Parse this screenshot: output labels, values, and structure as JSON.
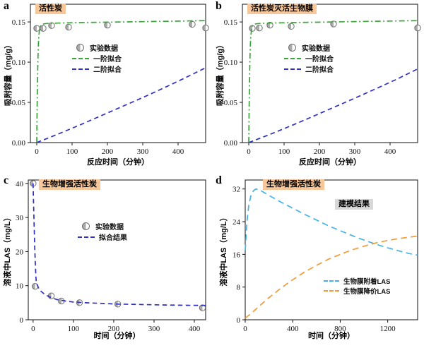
{
  "figure": {
    "background": "#ffffff"
  },
  "chart_data": [
    {
      "type": "line",
      "panel_label": "a",
      "title": "活性炭",
      "title_bg": "#f7c79a",
      "xlabel": "反应时间（分钟）",
      "ylabel": "吸附容量（mg/g）",
      "xlim": [
        -18,
        478
      ],
      "ylim": [
        0,
        0.172
      ],
      "xticks": [
        0,
        100,
        200,
        300,
        400
      ],
      "xtick_labels": [
        "0",
        "100",
        "200",
        "300",
        "400"
      ],
      "yticks": [
        0,
        0.05,
        0.1,
        0.15
      ],
      "ytick_labels": [
        "0.00",
        "0.05",
        "0.10",
        "0.15"
      ],
      "grid": false,
      "legend_position": "center",
      "series": [
        {
          "name": "实验数据",
          "type": "scatter",
          "marker": "half-filled-circle",
          "color": "#ababab",
          "x": [
            0,
            18,
            42,
            90,
            200,
            440,
            478
          ],
          "y": [
            0.142,
            0.142,
            0.1455,
            0.1435,
            0.146,
            0.147,
            0.1425
          ]
        },
        {
          "name": "一阶拟合",
          "type": "line",
          "style": "dashdot",
          "color": "#3aa63a",
          "points": [
            [
              0,
              0
            ],
            [
              1,
              0.04
            ],
            [
              2,
              0.072
            ],
            [
              3,
              0.097
            ],
            [
              4,
              0.114
            ],
            [
              5,
              0.125
            ],
            [
              6,
              0.133
            ],
            [
              8,
              0.141
            ],
            [
              10,
              0.1445
            ],
            [
              14,
              0.1467
            ],
            [
              20,
              0.1476
            ],
            [
              30,
              0.1481
            ],
            [
              60,
              0.1486
            ],
            [
              120,
              0.1492
            ],
            [
              200,
              0.1497
            ],
            [
              300,
              0.1503
            ],
            [
              400,
              0.151
            ],
            [
              478,
              0.1516
            ]
          ]
        },
        {
          "name": "二阶拟合",
          "type": "line",
          "style": "dash",
          "color": "#2f2fc1",
          "points": [
            [
              0,
              0
            ],
            [
              60,
              0.0105
            ],
            [
              120,
              0.0215
            ],
            [
              180,
              0.033
            ],
            [
              240,
              0.0445
            ],
            [
              300,
              0.056
            ],
            [
              360,
              0.068
            ],
            [
              420,
              0.0805
            ],
            [
              478,
              0.093
            ]
          ]
        }
      ]
    },
    {
      "type": "line",
      "panel_label": "b",
      "title": "活性炭灭活生物膜",
      "title_bg": "#f7c79a",
      "xlabel": "反应时间（分钟）",
      "ylabel": "吸附容量（mg/g）",
      "xlim": [
        -18,
        478
      ],
      "ylim": [
        0,
        0.172
      ],
      "xticks": [
        0,
        100,
        200,
        300,
        400
      ],
      "xtick_labels": [
        "0",
        "100",
        "200",
        "300",
        "400"
      ],
      "yticks": [
        0,
        0.05,
        0.1,
        0.15
      ],
      "ytick_labels": [
        "0.00",
        "0.05",
        "0.10",
        "0.15"
      ],
      "grid": false,
      "legend_position": "center",
      "series": [
        {
          "name": "实验数据",
          "type": "scatter",
          "marker": "half-filled-circle",
          "color": "#ababab",
          "x": [
            10,
            30,
            60,
            120,
            240,
            478
          ],
          "y": [
            0.142,
            0.1425,
            0.146,
            0.1445,
            0.1475,
            0.1425
          ]
        },
        {
          "name": "一阶拟合",
          "type": "line",
          "style": "dashdot",
          "color": "#3aa63a",
          "points": [
            [
              0,
              0
            ],
            [
              1,
              0.04
            ],
            [
              2,
              0.072
            ],
            [
              3,
              0.097
            ],
            [
              4,
              0.114
            ],
            [
              5,
              0.125
            ],
            [
              6,
              0.133
            ],
            [
              8,
              0.141
            ],
            [
              10,
              0.1445
            ],
            [
              14,
              0.1467
            ],
            [
              20,
              0.1476
            ],
            [
              30,
              0.1481
            ],
            [
              60,
              0.1486
            ],
            [
              120,
              0.1492
            ],
            [
              200,
              0.1497
            ],
            [
              300,
              0.1504
            ],
            [
              400,
              0.1511
            ],
            [
              478,
              0.1516
            ]
          ]
        },
        {
          "name": "二阶拟合",
          "type": "line",
          "style": "dash",
          "color": "#2f2fc1",
          "points": [
            [
              0,
              0
            ],
            [
              60,
              0.0102
            ],
            [
              120,
              0.021
            ],
            [
              180,
              0.0322
            ],
            [
              240,
              0.0437
            ],
            [
              300,
              0.0552
            ],
            [
              360,
              0.067
            ],
            [
              420,
              0.079
            ],
            [
              478,
              0.0915
            ]
          ]
        }
      ]
    },
    {
      "type": "line",
      "panel_label": "c",
      "title": "生物增强活性炭",
      "title_bg": "#f7c79a",
      "xlabel": "时间（分钟）",
      "ylabel": "溶液中LAS（mg/L）",
      "xlim": [
        -12,
        428
      ],
      "ylim": [
        0,
        41
      ],
      "xticks": [
        0,
        100,
        200,
        300,
        400
      ],
      "xtick_labels": [
        "0",
        "100",
        "200",
        "300",
        "400"
      ],
      "yticks": [
        0,
        10,
        20,
        30,
        40
      ],
      "ytick_labels": [
        "0",
        "10",
        "20",
        "30",
        "40"
      ],
      "grid": false,
      "legend_position": "center",
      "series": [
        {
          "name": "实验数据",
          "type": "scatter",
          "marker": "half-filled-circle",
          "color": "#ababab",
          "x": [
            0,
            5,
            45,
            70,
            115,
            210,
            420
          ],
          "y": [
            40,
            9.8,
            7.0,
            5.5,
            5.0,
            4.6,
            3.5
          ]
        },
        {
          "name": "拟合结果",
          "type": "line",
          "style": "dash",
          "color": "#2f2fc1",
          "points": [
            [
              0,
              40
            ],
            [
              1,
              35
            ],
            [
              2,
              30
            ],
            [
              3,
              25.5
            ],
            [
              4,
              21.5
            ],
            [
              5,
              18
            ],
            [
              6,
              15
            ],
            [
              7,
              12.6
            ],
            [
              8,
              11
            ],
            [
              10,
              10.3
            ],
            [
              14,
              9.2
            ],
            [
              20,
              8.3
            ],
            [
              30,
              7.3
            ],
            [
              45,
              6.5
            ],
            [
              60,
              5.9
            ],
            [
              80,
              5.5
            ],
            [
              100,
              5.2
            ],
            [
              130,
              5.0
            ],
            [
              170,
              4.8
            ],
            [
              210,
              4.6
            ],
            [
              260,
              4.5
            ],
            [
              320,
              4.35
            ],
            [
              380,
              4.25
            ],
            [
              428,
              4.2
            ]
          ]
        }
      ]
    },
    {
      "type": "line",
      "panel_label": "d",
      "title": "生物增强活性炭",
      "title_bg": "#f7c79a",
      "annotation": "建模结果",
      "annotation_bg": "#d8d8d8",
      "xlabel": "时间（分钟）",
      "ylabel": "溶液中LAS（mg/L）",
      "xlim": [
        0,
        1452
      ],
      "ylim": [
        0,
        34.2
      ],
      "xticks": [
        0,
        400,
        800,
        1200
      ],
      "xtick_labels": [
        "0",
        "400",
        "800",
        "1200"
      ],
      "yticks": [
        0,
        8,
        16,
        24,
        32
      ],
      "ytick_labels": [
        "0",
        "8",
        "16",
        "24",
        "32"
      ],
      "grid": false,
      "legend_position": "lower-right",
      "series": [
        {
          "name": "生物膜附着LAS",
          "type": "line",
          "style": "longdash",
          "color": "#45b2e5",
          "points": [
            [
              0,
              17
            ],
            [
              15,
              24
            ],
            [
              30,
              28
            ],
            [
              50,
              30.6
            ],
            [
              70,
              31.6
            ],
            [
              90,
              32
            ],
            [
              120,
              31.8
            ],
            [
              160,
              31.1
            ],
            [
              220,
              30.1
            ],
            [
              300,
              28.8
            ],
            [
              400,
              27.3
            ],
            [
              500,
              25.8
            ],
            [
              600,
              24.4
            ],
            [
              700,
              23.0
            ],
            [
              800,
              21.8
            ],
            [
              900,
              20.6
            ],
            [
              1000,
              19.5
            ],
            [
              1100,
              18.5
            ],
            [
              1200,
              17.6
            ],
            [
              1300,
              16.8
            ],
            [
              1380,
              16.2
            ],
            [
              1452,
              15.8
            ]
          ]
        },
        {
          "name": "生物膜降价LAS",
          "type": "line",
          "style": "longdash",
          "color": "#f29b38",
          "points": [
            [
              0,
              0.4
            ],
            [
              60,
              1.8
            ],
            [
              120,
              3.4
            ],
            [
              200,
              5.4
            ],
            [
              300,
              7.7
            ],
            [
              400,
              9.8
            ],
            [
              500,
              11.7
            ],
            [
              600,
              13.3
            ],
            [
              700,
              14.8
            ],
            [
              800,
              16.0
            ],
            [
              900,
              17.1
            ],
            [
              1000,
              18.0
            ],
            [
              1100,
              18.8
            ],
            [
              1200,
              19.4
            ],
            [
              1300,
              19.9
            ],
            [
              1380,
              20.2
            ],
            [
              1452,
              20.5
            ]
          ]
        }
      ]
    }
  ]
}
